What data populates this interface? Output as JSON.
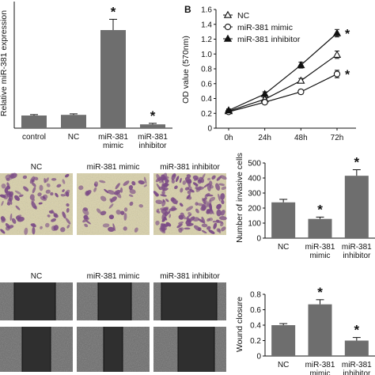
{
  "chart_data": [
    {
      "type": "bar",
      "panel": "",
      "ylabel": "Relative miR-381 expression",
      "ylim": [
        0,
        10
      ],
      "yticks": [],
      "categories": [
        "control",
        "NC",
        "miR-381 mimic",
        "miR-381 inhibitor"
      ],
      "values": [
        1.0,
        1.05,
        7.75,
        0.3
      ],
      "errors": [
        0.07,
        0.08,
        0.85,
        0.08
      ],
      "significance": [
        "",
        "",
        "*",
        "*"
      ],
      "bar_color": "#6e6e6e"
    },
    {
      "type": "line",
      "panel": "B",
      "ylabel": "OD value (570nm)",
      "ylim": [
        0,
        1.6
      ],
      "yticks": [
        "0",
        "0.2",
        "0.4",
        "0.6",
        "0.8",
        "1.0",
        "1.2",
        "1.4",
        "1.6"
      ],
      "x": [
        "0h",
        "24h",
        "48h",
        "72h"
      ],
      "series": [
        {
          "name": "NC",
          "marker": "open-triangle",
          "values": [
            0.23,
            0.39,
            0.64,
            0.99
          ],
          "errors": [
            0.02,
            0.02,
            0.03,
            0.05
          ],
          "significance": ""
        },
        {
          "name": "miR-381 mimic",
          "marker": "open-circle",
          "values": [
            0.22,
            0.35,
            0.49,
            0.73
          ],
          "errors": [
            0.02,
            0.02,
            0.03,
            0.05
          ],
          "significance": "*"
        },
        {
          "name": "miR-381 inhibitor",
          "marker": "filled-triangle",
          "values": [
            0.24,
            0.46,
            0.85,
            1.28
          ],
          "errors": [
            0.02,
            0.03,
            0.04,
            0.05
          ],
          "significance": "*"
        }
      ],
      "legend": "top-left"
    },
    {
      "type": "bar",
      "panel": "",
      "ylabel": "Number of invasive cells",
      "ylim": [
        0,
        500
      ],
      "yticks": [
        "0",
        "100",
        "200",
        "300",
        "400",
        "500"
      ],
      "categories": [
        "NC",
        "miR-381 mimic",
        "miR-381 inhibitor"
      ],
      "values": [
        238,
        128,
        415
      ],
      "errors": [
        20,
        12,
        40
      ],
      "significance": [
        "",
        "*",
        "*"
      ],
      "bar_color": "#6e6e6e"
    },
    {
      "type": "bar",
      "panel": "",
      "ylabel": "Wound closure",
      "ylim": [
        0,
        0.8
      ],
      "yticks": [
        "0",
        "0.2",
        "0.4",
        "0.6",
        "0.8"
      ],
      "categories": [
        "NC",
        "miR-381 mimic",
        "miR-381 inhibitor"
      ],
      "values": [
        0.4,
        0.67,
        0.2
      ],
      "errors": [
        0.02,
        0.06,
        0.04
      ],
      "significance": [
        "",
        "*",
        "*"
      ],
      "bar_color": "#6e6e6e"
    }
  ],
  "images": {
    "invasion_labels": [
      "NC",
      "miR-381 mimic",
      "miR-381 inhibitor"
    ],
    "wound_labels": [
      "NC",
      "miR-381 mimic",
      "miR-381 inhibitor"
    ],
    "invasion_colors": {
      "background": "#d9d1a8",
      "cells": "#7a4a86"
    },
    "wound_colors": {
      "background": "#6b6b6b",
      "gap": "#2f2f2f"
    }
  }
}
